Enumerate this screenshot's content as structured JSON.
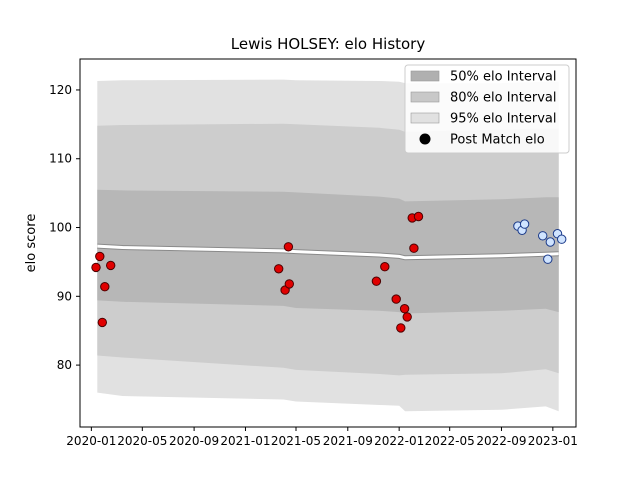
{
  "chart_data": {
    "type": "scatter",
    "title": "Lewis HOLSEY: elo History",
    "xlabel": "",
    "ylabel": "elo score",
    "xlim": [
      "2019-12-05",
      "2023-02-25"
    ],
    "ylim": [
      71,
      124.5
    ],
    "x_ticks": [
      "2020-01",
      "2020-05",
      "2020-09",
      "2021-01",
      "2021-05",
      "2021-09",
      "2022-01",
      "2022-05",
      "2022-09",
      "2023-01"
    ],
    "y_ticks": [
      80,
      90,
      100,
      110,
      120
    ],
    "grid": false,
    "legend_position": "top-right",
    "legend": [
      {
        "label": "50% elo Interval",
        "kind": "band",
        "color": "#b0b0b0"
      },
      {
        "label": "80% elo Interval",
        "kind": "band",
        "color": "#c8c8c8"
      },
      {
        "label": "95% elo Interval",
        "kind": "band",
        "color": "#e1e1e1"
      },
      {
        "label": "Post Match elo",
        "kind": "marker",
        "color": "#000000"
      }
    ],
    "bands": {
      "x": [
        "2020-01-15",
        "2020-03-15",
        "2021-04-01",
        "2021-05-01",
        "2021-11-15",
        "2022-01-01",
        "2022-01-15",
        "2022-09-01",
        "2022-12-15",
        "2023-01-15"
      ],
      "band95_upper": [
        121.3,
        121.4,
        121.5,
        121.4,
        121.3,
        121.2,
        121.0,
        121.0,
        121.2,
        121.2
      ],
      "band80_upper": [
        114.8,
        114.9,
        115.1,
        115.0,
        114.5,
        114.2,
        113.9,
        114.2,
        114.4,
        114.4
      ],
      "band50_upper": [
        105.5,
        105.4,
        105.2,
        105.1,
        104.5,
        104.2,
        103.8,
        104.1,
        104.4,
        104.4
      ],
      "center": [
        97.3,
        97.1,
        96.6,
        96.5,
        96.0,
        95.8,
        95.6,
        95.9,
        96.1,
        96.2
      ],
      "band50_lower": [
        89.4,
        89.2,
        88.6,
        88.3,
        87.9,
        87.7,
        87.5,
        87.9,
        88.2,
        87.7
      ],
      "band80_lower": [
        81.4,
        81.1,
        79.6,
        79.3,
        78.7,
        78.5,
        78.6,
        78.8,
        79.4,
        78.8
      ],
      "band95_lower": [
        76.0,
        75.5,
        75.0,
        74.7,
        74.2,
        74.1,
        73.3,
        73.5,
        74.0,
        73.3
      ]
    },
    "series": [
      {
        "color": "#e00000",
        "edge_color": "#4a0000",
        "points": [
          {
            "x": "2020-01-12",
            "y": 94.2
          },
          {
            "x": "2020-01-21",
            "y": 95.8
          },
          {
            "x": "2020-01-27",
            "y": 86.2
          },
          {
            "x": "2020-02-02",
            "y": 91.4
          },
          {
            "x": "2020-02-16",
            "y": 94.5
          },
          {
            "x": "2021-03-21",
            "y": 94.0
          },
          {
            "x": "2021-04-05",
            "y": 90.9
          },
          {
            "x": "2021-04-13",
            "y": 97.2
          },
          {
            "x": "2021-04-15",
            "y": 91.8
          },
          {
            "x": "2021-11-08",
            "y": 92.2
          },
          {
            "x": "2021-11-28",
            "y": 94.3
          },
          {
            "x": "2021-12-25",
            "y": 89.6
          },
          {
            "x": "2022-01-05",
            "y": 85.4
          },
          {
            "x": "2022-01-14",
            "y": 88.2
          },
          {
            "x": "2022-01-20",
            "y": 87.0
          },
          {
            "x": "2022-02-01",
            "y": 101.4
          },
          {
            "x": "2022-02-05",
            "y": 97.0
          },
          {
            "x": "2022-02-16",
            "y": 101.6
          }
        ]
      },
      {
        "color": "#d0e4ff",
        "edge_color": "#1a3a8a",
        "points": [
          {
            "x": "2022-10-10",
            "y": 100.2
          },
          {
            "x": "2022-10-20",
            "y": 99.6
          },
          {
            "x": "2022-10-26",
            "y": 100.5
          },
          {
            "x": "2022-12-08",
            "y": 98.8
          },
          {
            "x": "2022-12-20",
            "y": 95.4
          },
          {
            "x": "2022-12-26",
            "y": 97.9
          },
          {
            "x": "2023-01-12",
            "y": 99.1
          },
          {
            "x": "2023-01-22",
            "y": 98.3
          }
        ]
      }
    ]
  }
}
